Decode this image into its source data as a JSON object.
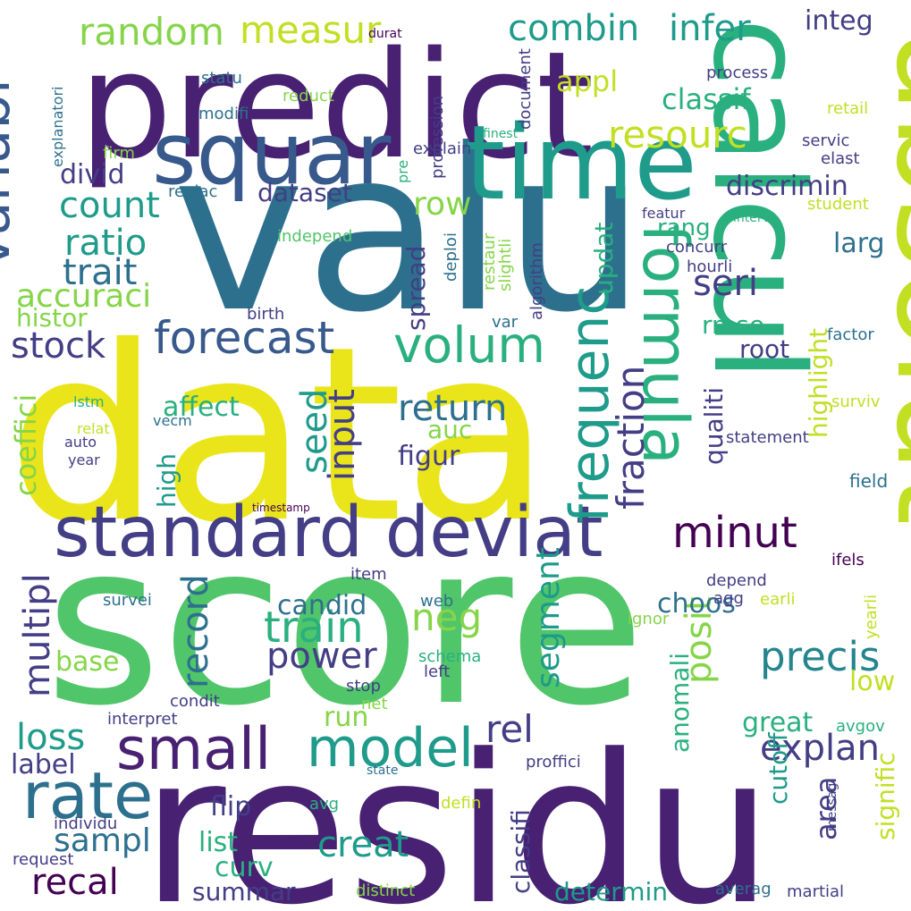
{
  "palette": {
    "purple": "#482173",
    "indigo": "#433e85",
    "blue": "#38598c",
    "steel": "#2d708e",
    "teal": "#25858e",
    "aqua": "#1e9b8a",
    "green": "#2ab07f",
    "mint": "#51c56a",
    "lime": "#86d549",
    "yellowgreen": "#c2df23",
    "yellow": "#eae51a",
    "dark": "#440154"
  },
  "words": [
    {
      "text": "valu",
      "color": "steel"
    },
    {
      "text": "data",
      "color": "yellow"
    },
    {
      "text": "score",
      "color": "mint"
    },
    {
      "text": "residu",
      "color": "purple"
    },
    {
      "text": "predict",
      "color": "purple"
    },
    {
      "text": "absolut",
      "color": "yellowgreen"
    },
    {
      "text": "calcul",
      "color": "green"
    },
    {
      "text": "time",
      "color": "aqua"
    },
    {
      "text": "squar",
      "color": "blue"
    },
    {
      "text": "standard deviat",
      "color": "indigo"
    },
    {
      "text": "formula",
      "color": "green"
    },
    {
      "text": "model",
      "color": "aqua"
    },
    {
      "text": "small",
      "color": "purple"
    },
    {
      "text": "rate",
      "color": "steel"
    },
    {
      "text": "variabl",
      "color": "blue"
    },
    {
      "text": "forecast",
      "color": "blue"
    },
    {
      "text": "volum",
      "color": "green"
    },
    {
      "text": "frequenc",
      "color": "aqua"
    },
    {
      "text": "random",
      "color": "lime"
    },
    {
      "text": "measur",
      "color": "yellowgreen"
    },
    {
      "text": "combin",
      "color": "aqua"
    },
    {
      "text": "infer",
      "color": "aqua"
    },
    {
      "text": "integ",
      "color": "indigo"
    },
    {
      "text": "resourc",
      "color": "yellowgreen"
    },
    {
      "text": "appl",
      "color": "yellowgreen"
    },
    {
      "text": "classif",
      "color": "green"
    },
    {
      "text": "count",
      "color": "aqua"
    },
    {
      "text": "ratio",
      "color": "aqua"
    },
    {
      "text": "trait",
      "color": "steel"
    },
    {
      "text": "accuraci",
      "color": "lime"
    },
    {
      "text": "divid",
      "color": "indigo"
    },
    {
      "text": "dataset",
      "color": "indigo"
    },
    {
      "text": "row",
      "color": "lime"
    },
    {
      "text": "discrimin",
      "color": "indigo"
    },
    {
      "text": "seri",
      "color": "indigo"
    },
    {
      "text": "larg",
      "color": "steel"
    },
    {
      "text": "stock",
      "color": "indigo"
    },
    {
      "text": "histor",
      "color": "lime"
    },
    {
      "text": "return",
      "color": "steel"
    },
    {
      "text": "seed",
      "color": "aqua"
    },
    {
      "text": "input",
      "color": "indigo"
    },
    {
      "text": "minut",
      "color": "dark"
    },
    {
      "text": "record",
      "color": "steel"
    },
    {
      "text": "neg",
      "color": "lime"
    },
    {
      "text": "train",
      "color": "green"
    },
    {
      "text": "power",
      "color": "indigo"
    },
    {
      "text": "precis",
      "color": "teal"
    },
    {
      "text": "segment",
      "color": "aqua"
    },
    {
      "text": "posit",
      "color": "lime"
    },
    {
      "text": "multipl",
      "color": "indigo"
    },
    {
      "text": "loss",
      "color": "aqua"
    },
    {
      "text": "explan",
      "color": "indigo"
    },
    {
      "text": "rel",
      "color": "indigo"
    },
    {
      "text": "sampl",
      "color": "steel"
    },
    {
      "text": "creat",
      "color": "aqua"
    },
    {
      "text": "recal",
      "color": "dark"
    },
    {
      "text": "label",
      "color": "indigo"
    },
    {
      "text": "coeffici",
      "color": "lime"
    },
    {
      "text": "fraction",
      "color": "indigo"
    },
    {
      "text": "affect",
      "color": "green"
    },
    {
      "text": "high",
      "color": "aqua"
    },
    {
      "text": "figur",
      "color": "indigo"
    },
    {
      "text": "auc",
      "color": "lime"
    },
    {
      "text": "candid",
      "color": "steel"
    },
    {
      "text": "base",
      "color": "lime"
    },
    {
      "text": "choos",
      "color": "steel"
    },
    {
      "text": "anomali",
      "color": "green"
    },
    {
      "text": "great",
      "color": "green"
    },
    {
      "text": "low",
      "color": "yellowgreen"
    },
    {
      "text": "cutoff",
      "color": "aqua"
    },
    {
      "text": "area",
      "color": "indigo"
    },
    {
      "text": "signific",
      "color": "yellowgreen"
    },
    {
      "text": "classifi",
      "color": "indigo"
    },
    {
      "text": "flip",
      "color": "indigo"
    },
    {
      "text": "list",
      "color": "green"
    },
    {
      "text": "curv",
      "color": "green"
    },
    {
      "text": "summar",
      "color": "indigo"
    },
    {
      "text": "determin",
      "color": "aqua"
    },
    {
      "text": "run",
      "color": "lime"
    },
    {
      "text": "spread",
      "color": "indigo"
    },
    {
      "text": "updat",
      "color": "green"
    },
    {
      "text": "rang",
      "color": "green"
    },
    {
      "text": "rmse",
      "color": "green"
    },
    {
      "text": "root",
      "color": "indigo"
    },
    {
      "text": "qualiti",
      "color": "indigo"
    },
    {
      "text": "highlight",
      "color": "yellowgreen"
    },
    {
      "text": "concurr",
      "color": "indigo"
    },
    {
      "text": "hourli",
      "color": "indigo"
    },
    {
      "text": "factor",
      "color": "steel"
    },
    {
      "text": "surviv",
      "color": "yellowgreen"
    },
    {
      "text": "statement",
      "color": "indigo"
    },
    {
      "text": "field",
      "color": "steel"
    },
    {
      "text": "depend",
      "color": "indigo"
    },
    {
      "text": "agg",
      "color": "indigo"
    },
    {
      "text": "ifels",
      "color": "dark"
    },
    {
      "text": "process",
      "color": "indigo"
    },
    {
      "text": "retail",
      "color": "yellowgreen"
    },
    {
      "text": "servic",
      "color": "indigo"
    },
    {
      "text": "elast",
      "color": "indigo"
    },
    {
      "text": "featur",
      "color": "indigo"
    },
    {
      "text": "student",
      "color": "yellowgreen"
    },
    {
      "text": "interv",
      "color": "green"
    },
    {
      "text": "statu",
      "color": "steel"
    },
    {
      "text": "reduct",
      "color": "lime"
    },
    {
      "text": "modifi",
      "color": "steel"
    },
    {
      "text": "replac",
      "color": "steel"
    },
    {
      "text": "independ",
      "color": "mint"
    },
    {
      "text": "birth",
      "color": "indigo"
    },
    {
      "text": "lstm",
      "color": "green"
    },
    {
      "text": "relat",
      "color": "yellowgreen"
    },
    {
      "text": "vecm",
      "color": "steel"
    },
    {
      "text": "auto",
      "color": "indigo"
    },
    {
      "text": "year",
      "color": "indigo"
    },
    {
      "text": "timestamp",
      "color": "dark"
    },
    {
      "text": "item",
      "color": "indigo"
    },
    {
      "text": "survei",
      "color": "steel"
    },
    {
      "text": "web",
      "color": "steel"
    },
    {
      "text": "schema",
      "color": "green"
    },
    {
      "text": "left",
      "color": "indigo"
    },
    {
      "text": "stop",
      "color": "indigo"
    },
    {
      "text": "net",
      "color": "lime"
    },
    {
      "text": "condit",
      "color": "indigo"
    },
    {
      "text": "interpret",
      "color": "indigo"
    },
    {
      "text": "proffici",
      "color": "indigo"
    },
    {
      "text": "state",
      "color": "steel"
    },
    {
      "text": "avg",
      "color": "green"
    },
    {
      "text": "defin",
      "color": "yellowgreen"
    },
    {
      "text": "individu",
      "color": "indigo"
    },
    {
      "text": "request",
      "color": "indigo"
    },
    {
      "text": "distinct",
      "color": "lime"
    },
    {
      "text": "averag",
      "color": "steel"
    },
    {
      "text": "martial",
      "color": "indigo"
    },
    {
      "text": "earli",
      "color": "yellowgreen"
    },
    {
      "text": "ignor",
      "color": "lime"
    },
    {
      "text": "yearli",
      "color": "yellowgreen"
    },
    {
      "text": "avgov",
      "color": "green"
    },
    {
      "text": "messag",
      "color": "indigo"
    },
    {
      "text": "durat",
      "color": "dark"
    },
    {
      "text": "explanatori",
      "color": "steel"
    },
    {
      "text": "firm",
      "color": "lime"
    },
    {
      "text": "profession",
      "color": "indigo"
    },
    {
      "text": "document",
      "color": "indigo"
    },
    {
      "text": "finest",
      "color": "green"
    },
    {
      "text": "explain",
      "color": "indigo"
    },
    {
      "text": "pre",
      "color": "green"
    },
    {
      "text": "deploi",
      "color": "steel"
    },
    {
      "text": "restaur",
      "color": "lime"
    },
    {
      "text": "slightli",
      "color": "lime"
    },
    {
      "text": "algorithm",
      "color": "indigo"
    },
    {
      "text": "var",
      "color": "steel"
    }
  ]
}
